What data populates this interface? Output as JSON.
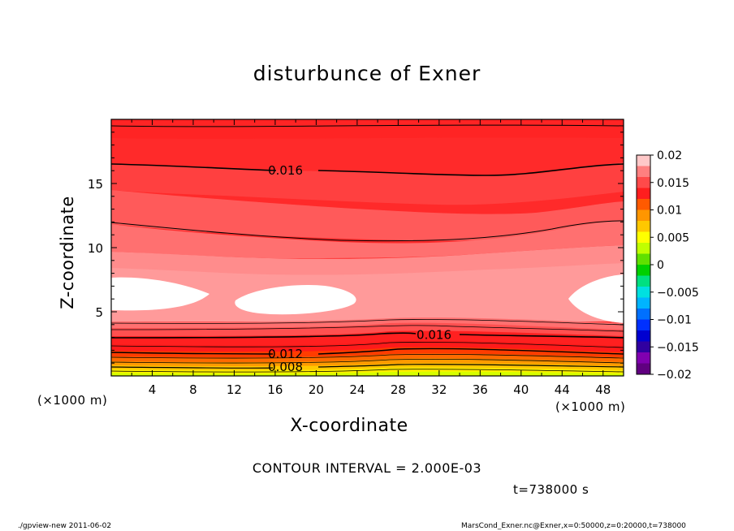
{
  "chart_data": {
    "type": "heatmap",
    "title": "disturbunce of Exner",
    "xlabel": "X-coordinate",
    "ylabel": "Z-coordinate",
    "x_unit_label": "(×1000 m)",
    "xlim": [
      0,
      50
    ],
    "ylim": [
      0,
      20
    ],
    "xticks": [
      "4",
      "8",
      "12",
      "16",
      "20",
      "24",
      "28",
      "32",
      "36",
      "40",
      "44",
      "48"
    ],
    "xtick_values": [
      4,
      8,
      12,
      16,
      20,
      24,
      28,
      32,
      36,
      40,
      44,
      48
    ],
    "yticks": [
      "5",
      "10",
      "15"
    ],
    "ytick_values": [
      5,
      10,
      15
    ],
    "contour_interval": "CONTOUR INTERVAL = 2.000E-03",
    "contour_labels": [
      {
        "text": "0.016",
        "x": 17,
        "z": 16.0
      },
      {
        "text": "0.016",
        "x": 31.5,
        "z": 3.2
      },
      {
        "text": "0.012",
        "x": 17,
        "z": 1.7
      },
      {
        "text": "0.008",
        "x": 17,
        "z": 0.7
      }
    ],
    "colorbar": {
      "labels": [
        "0.02",
        "0.015",
        "0.01",
        "0.005",
        "0",
        "−0.005",
        "−0.01",
        "−0.015",
        "−0.02"
      ],
      "values": [
        0.02,
        0.015,
        0.01,
        0.005,
        0,
        -0.005,
        -0.01,
        -0.015,
        -0.02
      ],
      "colors_top_to_bottom": [
        "#ffc8c8",
        "#ff8080",
        "#ff4a4a",
        "#ff1e1e",
        "#ff5a00",
        "#ff9600",
        "#ffc800",
        "#ffff00",
        "#c0ff00",
        "#60e000",
        "#00d000",
        "#00e080",
        "#00e0e0",
        "#00b4ff",
        "#0070ff",
        "#0030ff",
        "#0000d0",
        "#3000a0",
        "#8000b0",
        "#600080"
      ]
    },
    "time_label": "t=738000 s",
    "footer_left": "./gpview-new   2011-06-02",
    "footer_right": "MarsCond_Exner.nc@Exner,x=0:50000,z=0:20000,t=738000"
  }
}
